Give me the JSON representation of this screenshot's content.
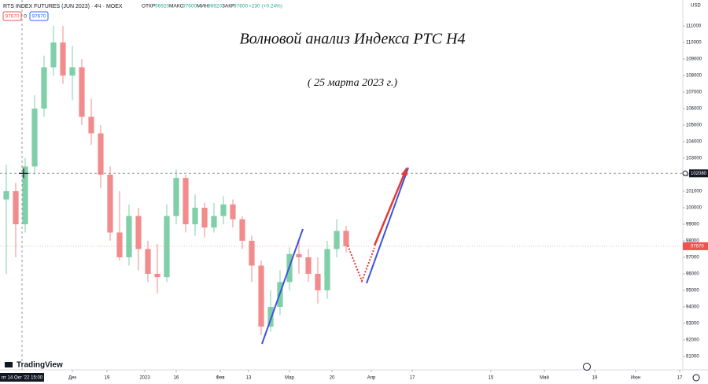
{
  "header": {
    "symbol": "RTS INDEX FUTURES (JUN 2023) · 4Ч · MOEX",
    "open_label": "ОТКР",
    "open": "96920",
    "high_label": "МАКС",
    "high": "97600",
    "low_label": "МИН",
    "low": "96920",
    "close_label": "ЗАКР",
    "close": "97600",
    "change": "+230 (+0.24%)",
    "bid": "97670",
    "spread": "0",
    "ask": "97670"
  },
  "axis_unit": "USD",
  "cursor_date": "пт 14 Окт '22 15:00",
  "brand": "TradingView",
  "chart_data": {
    "type": "candlestick",
    "title": "Волновой анализ Индекса РТС H4",
    "subtitle": "( 25 марта 2023 г.)",
    "x": [
      2,
      5,
      8,
      11,
      14,
      17,
      20,
      23,
      26,
      29,
      32,
      35,
      38,
      41,
      44,
      47,
      50,
      53,
      56,
      59,
      62,
      65,
      68,
      71,
      74,
      77,
      80,
      83,
      86,
      89,
      92,
      95,
      98,
      101,
      104,
      107,
      110
    ],
    "open": [
      100500,
      101000,
      99000,
      102500,
      106000,
      108500,
      110000,
      108000,
      108500,
      105500,
      104500,
      102000,
      98500,
      97000,
      99500,
      97500,
      96000,
      95800,
      99500,
      101800,
      99000,
      100000,
      98800,
      99500,
      100200,
      99300,
      98000,
      96500,
      92800,
      94000,
      95500,
      97200,
      97000,
      96000,
      95000,
      97500,
      98600
    ],
    "high": [
      102600,
      101500,
      103000,
      106800,
      109200,
      111000,
      111000,
      109800,
      109000,
      106600,
      105000,
      102500,
      101000,
      100200,
      100000,
      98000,
      97800,
      100200,
      102300,
      102000,
      100800,
      100300,
      100300,
      100700,
      100500,
      99500,
      98300,
      96800,
      95000,
      96200,
      97600,
      98000,
      97500,
      97000,
      98000,
      99300,
      98900
    ],
    "low": [
      96000,
      97000,
      98500,
      102000,
      105500,
      108000,
      107500,
      106500,
      105000,
      103800,
      101200,
      98000,
      96800,
      96500,
      96200,
      95500,
      94800,
      95500,
      99000,
      98500,
      98300,
      98200,
      98500,
      99000,
      98800,
      97500,
      95500,
      92300,
      92500,
      93500,
      95000,
      96000,
      95500,
      94200,
      94500,
      97000,
      97300
    ],
    "close": [
      101000,
      99000,
      102500,
      106000,
      108500,
      110000,
      108000,
      108500,
      105500,
      104500,
      102000,
      98500,
      97000,
      99500,
      97500,
      96000,
      95800,
      99500,
      101800,
      99000,
      100000,
      98800,
      99500,
      100200,
      99300,
      98000,
      96500,
      92800,
      94000,
      95500,
      97200,
      97000,
      96000,
      95000,
      97500,
      98600,
      97670
    ],
    "up_color": "#7fcfa8",
    "down_color": "#f28b8b",
    "xlim": [
      0,
      217
    ],
    "xticks": [
      {
        "value": 23,
        "label": "Дек"
      },
      {
        "value": 34,
        "label": "19"
      },
      {
        "value": 46,
        "label": "2023"
      },
      {
        "value": 56,
        "label": "16"
      },
      {
        "value": 70,
        "label": "Фев"
      },
      {
        "value": 79,
        "label": "13"
      },
      {
        "value": 92,
        "label": "Мар"
      },
      {
        "value": 105.5,
        "label": "20"
      },
      {
        "value": 118,
        "label": "Апр"
      },
      {
        "value": 131,
        "label": "17"
      },
      {
        "value": 156,
        "label": "15"
      },
      {
        "value": 173,
        "label": "Май"
      },
      {
        "value": 189,
        "label": "19"
      },
      {
        "value": 202,
        "label": "Июн"
      },
      {
        "value": 216,
        "label": "17"
      }
    ],
    "ylim": [
      90190,
      112570
    ],
    "yticks": [
      91000,
      92000,
      93000,
      94000,
      95000,
      96000,
      97000,
      98000,
      99000,
      100000,
      101000,
      102000,
      103000,
      104000,
      105000,
      106000,
      107000,
      108000,
      109000,
      110000,
      111000
    ],
    "crosshair_price": 102080,
    "last_price": 97670
  }
}
